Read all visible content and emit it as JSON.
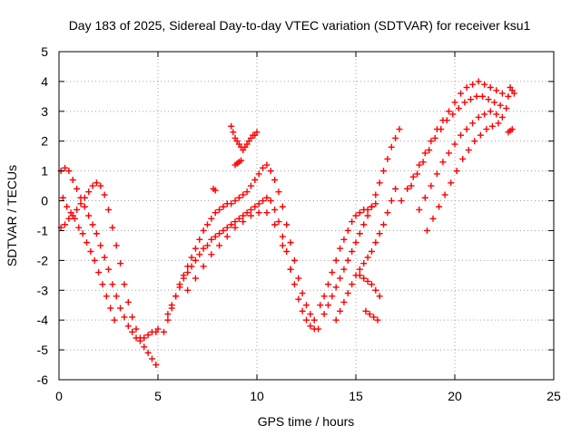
{
  "chart_data": {
    "type": "scatter",
    "title": "Day 183 of 2025, Sidereal Day-to-day VTEC variation (SDTVAR) for receiver ksu1",
    "xlabel": "GPS time / hours",
    "ylabel": "SDTVAR / TECUs",
    "xlim": [
      0,
      25
    ],
    "ylim": [
      -6,
      5
    ],
    "xticks": [
      "0",
      "5",
      "10",
      "15",
      "20",
      "25"
    ],
    "yticks": [
      "-6",
      "-5",
      "-4",
      "-3",
      "-2",
      "-1",
      "0",
      "1",
      "2",
      "3",
      "4",
      "5"
    ],
    "grid": true,
    "marker": "plus",
    "color": "#ff0000",
    "series": [
      {
        "x": [
          0.1,
          0.3,
          0.5,
          0.7,
          0.9,
          1.1,
          1.3,
          1.5,
          1.7,
          1.9,
          2.1,
          2.3,
          2.5,
          2.7,
          2.9,
          3.1,
          3.3,
          3.5,
          3.7,
          3.9,
          4.1,
          4.3,
          4.5,
          4.7,
          4.9,
          5.0
        ],
        "y": [
          1.0,
          1.1,
          1.0,
          0.7,
          0.4,
          0.1,
          -0.2,
          -0.5,
          -0.8,
          -1.1,
          -1.5,
          -1.9,
          -2.3,
          -2.8,
          -3.2,
          -3.6,
          -3.9,
          -4.2,
          -4.4,
          -4.6,
          -4.7,
          -4.6,
          -4.5,
          -4.4,
          -4.4,
          -4.3
        ]
      },
      {
        "x": [
          0.1,
          0.3,
          0.5,
          0.7,
          0.9,
          1.1,
          1.3,
          1.5,
          1.7,
          1.9,
          2.1,
          2.3,
          2.5,
          2.7,
          2.9,
          3.1,
          3.3,
          3.5,
          3.7,
          3.9,
          4.1,
          4.3,
          4.5,
          4.7,
          4.9
        ],
        "y": [
          -0.9,
          -0.8,
          -0.6,
          -0.5,
          -0.3,
          -0.1,
          0.1,
          0.3,
          0.5,
          0.6,
          0.5,
          0.2,
          -0.3,
          -0.9,
          -1.5,
          -2.1,
          -2.8,
          -3.4,
          -3.9,
          -4.3,
          -4.6,
          -4.9,
          -5.1,
          -5.3,
          -5.5
        ]
      },
      {
        "x": [
          0.2,
          0.4,
          0.6,
          0.8,
          1.0,
          1.2,
          1.4,
          1.6,
          1.8,
          2.0,
          2.2,
          2.4,
          2.6,
          2.8
        ],
        "y": [
          0.1,
          -0.2,
          -0.4,
          -0.6,
          -0.9,
          -1.1,
          -1.4,
          -1.7,
          -2.0,
          -2.4,
          -2.8,
          -3.2,
          -3.6,
          -4.0
        ]
      },
      {
        "x": [
          5.3,
          5.5,
          5.7,
          5.9,
          6.1,
          6.3,
          6.5,
          6.7,
          6.9,
          7.1,
          7.3,
          7.5,
          7.7,
          7.9,
          8.1,
          8.3,
          8.5,
          8.7,
          8.9,
          9.1,
          9.3,
          9.5,
          9.7,
          9.9,
          10.1,
          10.3,
          10.5,
          10.7,
          10.9,
          11.1,
          11.3,
          11.5,
          11.7,
          11.9,
          12.1,
          12.3,
          12.5,
          12.7,
          12.9
        ],
        "y": [
          -4.4,
          -4.0,
          -3.6,
          -3.2,
          -2.8,
          -2.5,
          -2.2,
          -1.9,
          -1.6,
          -1.3,
          -1.0,
          -0.8,
          -0.6,
          -0.4,
          -0.3,
          -0.2,
          -0.1,
          -0.1,
          0.0,
          0.1,
          0.2,
          0.3,
          0.5,
          0.7,
          0.9,
          1.1,
          1.2,
          1.0,
          0.7,
          0.3,
          -0.2,
          -0.8,
          -1.4,
          -2.0,
          -2.6,
          -3.1,
          -3.5,
          -3.8,
          -4.0
        ]
      },
      {
        "x": [
          5.5,
          5.7,
          5.9,
          6.1,
          6.3,
          6.5,
          6.7,
          6.9,
          7.1,
          7.3,
          7.5,
          7.7,
          7.9,
          8.1,
          8.3,
          8.5,
          8.7,
          8.9,
          9.1,
          9.3,
          9.5,
          9.7,
          9.9,
          10.1,
          10.3,
          10.5,
          10.7,
          10.9,
          11.1,
          11.3,
          11.5,
          11.7,
          11.9,
          12.1,
          12.3,
          12.5,
          12.7,
          12.9,
          13.1
        ],
        "y": [
          -3.8,
          -3.5,
          -3.2,
          -2.9,
          -2.6,
          -2.4,
          -2.2,
          -2.0,
          -1.8,
          -1.6,
          -1.5,
          -1.3,
          -1.2,
          -1.1,
          -1.0,
          -0.9,
          -0.8,
          -0.7,
          -0.6,
          -0.5,
          -0.4,
          -0.3,
          -0.2,
          -0.1,
          0.0,
          0.1,
          0.0,
          -0.3,
          -0.7,
          -1.2,
          -1.7,
          -2.3,
          -2.8,
          -3.3,
          -3.7,
          -4.0,
          -4.2,
          -4.3,
          -4.3
        ]
      },
      {
        "x": [
          6.5,
          6.9,
          7.3,
          7.7,
          8.1,
          8.5,
          8.9,
          9.3,
          9.7,
          10.1,
          10.5,
          10.9,
          11.3,
          11.7
        ],
        "y": [
          -3.0,
          -2.6,
          -2.2,
          -1.8,
          -1.5,
          -1.2,
          -0.9,
          -0.7,
          -0.5,
          -0.4,
          -0.4,
          -0.8,
          -1.5,
          -2.3
        ]
      },
      {
        "x": [
          8.7,
          8.8,
          8.9,
          9.0,
          9.1,
          9.2,
          9.3,
          9.4,
          9.5,
          9.6,
          9.7,
          9.8,
          9.9,
          10.0
        ],
        "y": [
          2.5,
          2.3,
          2.1,
          2.0,
          1.9,
          1.8,
          1.7,
          1.8,
          1.9,
          2.0,
          2.1,
          2.2,
          2.2,
          2.3
        ]
      },
      {
        "x": [
          8.9,
          9.0,
          9.1,
          9.2
        ],
        "y": [
          1.2,
          1.25,
          1.3,
          1.35
        ]
      },
      {
        "x": [
          7.8,
          7.9
        ],
        "y": [
          0.4,
          0.35
        ]
      },
      {
        "x": [
          13.2,
          13.4,
          13.6,
          13.8,
          14.0,
          14.2,
          14.4,
          14.6,
          14.8,
          15.0,
          15.2,
          15.4,
          15.6,
          15.8,
          16.0
        ],
        "y": [
          -3.5,
          -3.2,
          -2.8,
          -2.4,
          -2.0,
          -1.6,
          -1.3,
          -1.0,
          -0.7,
          -0.5,
          -0.4,
          -0.3,
          -0.3,
          -0.2,
          -0.1
        ]
      },
      {
        "x": [
          13.4,
          13.6,
          13.8,
          14.0,
          14.2,
          14.4,
          14.6,
          14.8,
          15.0,
          15.2,
          15.4,
          15.6,
          15.8,
          16.0,
          16.2,
          16.4,
          16.6,
          16.8,
          17.0,
          17.2
        ],
        "y": [
          -3.8,
          -3.5,
          -3.2,
          -2.9,
          -2.6,
          -2.3,
          -2.0,
          -1.7,
          -1.4,
          -1.1,
          -0.8,
          -0.5,
          -0.2,
          0.2,
          0.6,
          1.0,
          1.4,
          1.8,
          2.1,
          2.4
        ]
      },
      {
        "x": [
          14.0,
          14.2,
          14.4,
          14.6,
          14.8,
          15.0,
          15.2,
          15.4,
          15.6,
          15.8,
          16.0,
          16.2,
          16.4,
          16.6,
          16.8,
          17.0
        ],
        "y": [
          -4.0,
          -3.7,
          -3.4,
          -3.1,
          -2.8,
          -2.5,
          -2.3,
          -2.1,
          -1.9,
          -1.7,
          -1.4,
          -1.1,
          -0.8,
          -0.4,
          0.0,
          0.4
        ]
      },
      {
        "x": [
          15.2,
          15.4,
          15.6,
          15.8,
          16.0,
          16.2
        ],
        "y": [
          -2.5,
          -2.6,
          -2.7,
          -2.8,
          -3.0,
          -3.2
        ]
      },
      {
        "x": [
          15.5,
          15.7,
          15.9,
          16.1
        ],
        "y": [
          -3.7,
          -3.8,
          -3.9,
          -4.0
        ]
      },
      {
        "x": [
          17.3,
          17.6,
          17.9,
          18.2,
          18.5,
          18.8,
          19.1,
          19.4,
          19.7,
          20.0,
          20.3,
          20.6,
          20.9,
          21.2,
          21.5,
          21.8,
          22.1,
          22.4,
          22.7
        ],
        "y": [
          0.0,
          0.4,
          0.8,
          1.2,
          1.6,
          2.0,
          2.4,
          2.7,
          3.0,
          3.3,
          3.6,
          3.8,
          3.9,
          4.0,
          3.9,
          3.8,
          3.7,
          3.6,
          3.5
        ]
      },
      {
        "x": [
          17.8,
          18.1,
          18.4,
          18.7,
          19.0,
          19.3,
          19.6,
          19.9,
          20.2,
          20.5,
          20.8,
          21.1,
          21.4,
          21.7,
          22.0,
          22.3,
          22.6
        ],
        "y": [
          0.5,
          0.9,
          1.3,
          1.7,
          2.1,
          2.4,
          2.7,
          2.9,
          3.1,
          3.3,
          3.4,
          3.5,
          3.5,
          3.4,
          3.3,
          3.2,
          3.1
        ]
      },
      {
        "x": [
          18.2,
          18.5,
          18.8,
          19.1,
          19.4,
          19.7,
          20.0,
          20.3,
          20.6,
          20.9,
          21.2,
          21.5,
          21.8,
          22.1,
          22.4
        ],
        "y": [
          -0.3,
          0.1,
          0.5,
          0.9,
          1.3,
          1.6,
          1.9,
          2.2,
          2.4,
          2.6,
          2.8,
          2.9,
          3.0,
          2.9,
          2.8
        ]
      },
      {
        "x": [
          18.6,
          18.9,
          19.2,
          19.5,
          19.8,
          20.1,
          20.4,
          20.7,
          21.0,
          21.3,
          21.6,
          21.9,
          22.2
        ],
        "y": [
          -1.0,
          -0.6,
          -0.2,
          0.2,
          0.6,
          1.0,
          1.4,
          1.7,
          2.0,
          2.2,
          2.4,
          2.5,
          2.6
        ]
      },
      {
        "x": [
          22.8,
          22.9,
          23.0
        ],
        "y": [
          3.8,
          3.7,
          3.6
        ]
      },
      {
        "x": [
          22.7,
          22.8,
          22.9
        ],
        "y": [
          2.3,
          2.35,
          2.4
        ]
      }
    ]
  }
}
